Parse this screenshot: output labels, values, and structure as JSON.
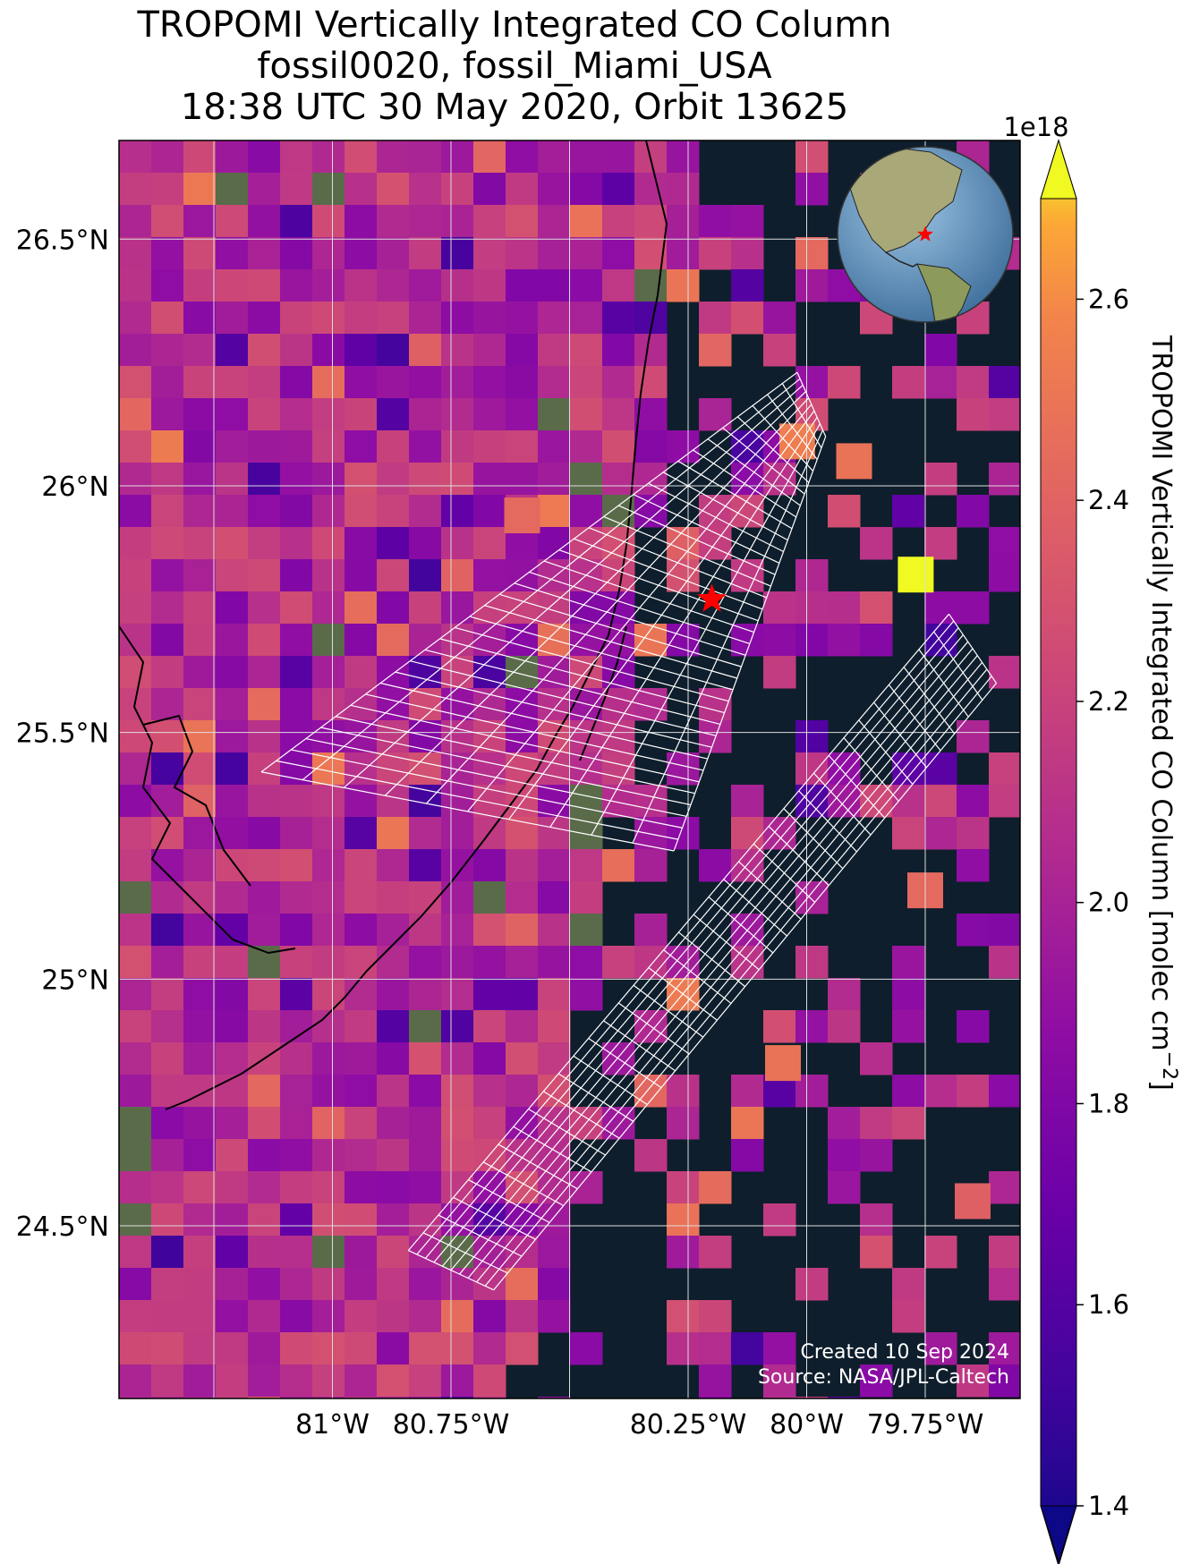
{
  "title": {
    "line1": "TROPOMI Vertically Integrated CO Column",
    "line2": "fossil0020, fossil_Miami_USA",
    "line3": "18:38 UTC 30 May 2020, Orbit 13625"
  },
  "map": {
    "extent_lon": [
      -81.45,
      -79.55
    ],
    "extent_lat": [
      24.15,
      26.7
    ],
    "land_color": "#5a6b4a",
    "ocean_color": "#0e1e2c",
    "grid_color": "#dddddd",
    "target_marker": {
      "lon": -80.2,
      "lat": 25.77,
      "color": "#ff0000",
      "icon": "star-icon"
    }
  },
  "axes": {
    "x_ticks": [
      {
        "value": -81.0,
        "label": "81°W"
      },
      {
        "value": -80.75,
        "label": "80.75°W"
      },
      {
        "value": -80.25,
        "label": "80.25°W"
      },
      {
        "value": -80.0,
        "label": "80°W"
      },
      {
        "value": -79.75,
        "label": "79.75°W"
      }
    ],
    "y_ticks": [
      {
        "value": 26.5,
        "label": "26.5°N"
      },
      {
        "value": 26.0,
        "label": "26°N"
      },
      {
        "value": 25.5,
        "label": "25.5°N"
      },
      {
        "value": 25.0,
        "label": "25°N"
      },
      {
        "value": 24.5,
        "label": "24.5°N"
      }
    ],
    "grid_lons": [
      -81.25,
      -81.0,
      -80.75,
      -80.5,
      -80.25,
      -80.0,
      -79.75,
      -79.5
    ],
    "grid_lats": [
      26.5,
      26.0,
      25.5,
      25.0,
      24.5
    ]
  },
  "colorbar": {
    "label": "TROPOMI Vertically Integrated CO Column [molec cm$^{-2}$]",
    "label_display": "TROPOMI Vertically Integrated CO Column [molec cm",
    "label_sup": "−2",
    "label_close": "]",
    "scale_label": "1e18",
    "min": 1.4,
    "max": 2.7,
    "extend": "both",
    "colormap": "plasma",
    "ticks": [
      {
        "value": 1.4,
        "label": "1.4"
      },
      {
        "value": 1.6,
        "label": "1.6"
      },
      {
        "value": 1.8,
        "label": "1.8"
      },
      {
        "value": 2.0,
        "label": "2.0"
      },
      {
        "value": 2.2,
        "label": "2.2"
      },
      {
        "value": 2.4,
        "label": "2.4"
      },
      {
        "value": 2.6,
        "label": "2.6"
      }
    ]
  },
  "chart_data": {
    "type": "heatmap",
    "variable": "CO column",
    "units": "molec cm^-2 (x1e18)",
    "value_range": [
      1.4,
      2.7
    ],
    "typical_value": 2.05,
    "notable_cells": [
      {
        "lon": -79.77,
        "lat": 25.82,
        "value": 2.7
      },
      {
        "lon": -80.02,
        "lat": 26.09,
        "value": 2.5
      },
      {
        "lon": -79.9,
        "lat": 26.05,
        "value": 2.45
      },
      {
        "lon": -80.6,
        "lat": 25.94,
        "value": 2.4
      },
      {
        "lon": -79.75,
        "lat": 25.18,
        "value": 2.4
      },
      {
        "lon": -80.05,
        "lat": 24.83,
        "value": 2.45
      },
      {
        "lon": -79.65,
        "lat": 24.55,
        "value": 2.35
      }
    ],
    "satellite_footprints": [
      {
        "name": "swath-a",
        "corners": [
          [
            -81.15,
            25.42
          ],
          [
            -80.02,
            26.23
          ],
          [
            -80.28,
            25.26
          ],
          [
            -79.96,
            26.1
          ]
        ]
      },
      {
        "name": "swath-b",
        "corners": [
          [
            -80.84,
            24.45
          ],
          [
            -79.7,
            25.74
          ],
          [
            -80.66,
            24.37
          ],
          [
            -79.6,
            25.6
          ]
        ]
      }
    ]
  },
  "inset_globe": {
    "icon": "globe-icon",
    "marker_color": "#ff0000"
  },
  "credits": {
    "line1": "Created 10 Sep 2024",
    "line2": "Source: NASA/JPL-Caltech"
  }
}
